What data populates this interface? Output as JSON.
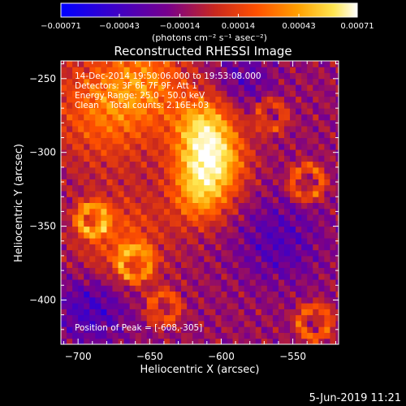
{
  "chart_data": {
    "type": "heatmap",
    "title": "Reconstructed RHESSI Image",
    "xlabel": "Heliocentric X (arcsec)",
    "ylabel": "Heliocentric Y (arcsec)",
    "xlim": [
      -712,
      -518
    ],
    "ylim": [
      -430,
      -238
    ],
    "x_ticks": [
      -700,
      -650,
      -600,
      -550
    ],
    "x_tick_labels": [
      "−700",
      "−650",
      "−600",
      "−550"
    ],
    "y_ticks": [
      -250,
      -300,
      -350,
      -400
    ],
    "y_tick_labels": [
      "−250",
      "−300",
      "−350",
      "−400"
    ],
    "colorbar": {
      "ticks": [
        -0.00071,
        -0.00043,
        -0.00014,
        0.00014,
        0.00043,
        0.00071
      ],
      "tick_labels": [
        "−0.00071",
        "−0.00043",
        "−0.00014",
        "0.00014",
        "0.00043",
        "0.00071"
      ],
      "units_label": "(photons cm⁻² s⁻¹ asec⁻²)",
      "colors": [
        "#0000ff",
        "#3c00c8",
        "#78008c",
        "#c8281e",
        "#ff5000",
        "#ffa000",
        "#ffe650",
        "#ffffff"
      ]
    },
    "annotations": [
      "14-Dec-2014 19:50:06.000 to 19:53:08.000",
      "Detectors: 3F 6F 7F 9F, Att 1",
      "Energy Range: 25.0 - 50.0 keV",
      "Clean    Total counts: 2.16E+03"
    ],
    "peak_label": "Position of Peak = [-608,-305]",
    "peak": {
      "x": -608,
      "y": -305
    },
    "grid": false
  },
  "footer": {
    "date": "5-Jun-2019 11:21"
  }
}
